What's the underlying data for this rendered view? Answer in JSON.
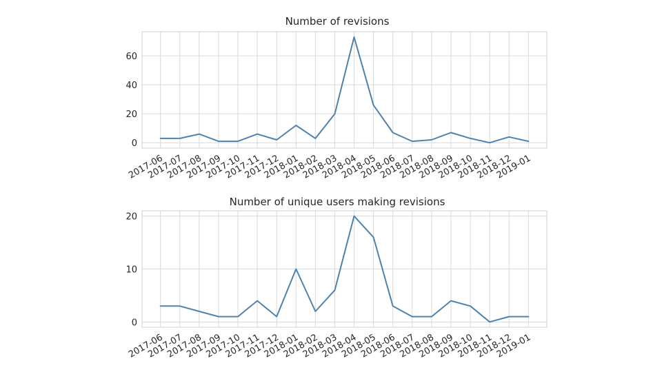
{
  "chart_data": [
    {
      "type": "line",
      "title": "Number of revisions",
      "xlabel": "",
      "ylabel": "",
      "x": [
        "2017-06",
        "2017-07",
        "2017-08",
        "2017-09",
        "2017-10",
        "2017-11",
        "2017-12",
        "2018-01",
        "2018-02",
        "2018-03",
        "2018-04",
        "2018-05",
        "2018-06",
        "2018-07",
        "2018-08",
        "2018-09",
        "2018-10",
        "2018-11",
        "2018-12",
        "2019-01"
      ],
      "series": [
        {
          "values": [
            3,
            3,
            6,
            1,
            1,
            6,
            2,
            12,
            3,
            20,
            73,
            26,
            7,
            1,
            2,
            7,
            3,
            0,
            4,
            1
          ]
        }
      ],
      "yticks": [
        0,
        20,
        40,
        60
      ],
      "ylim": [
        -3.7,
        76.7
      ],
      "xlim": [
        -0.95,
        19.95
      ],
      "grid": true,
      "line_color": "#4c82ad"
    },
    {
      "type": "line",
      "title": "Number of unique users making revisions",
      "xlabel": "",
      "ylabel": "",
      "x": [
        "2017-06",
        "2017-07",
        "2017-08",
        "2017-09",
        "2017-10",
        "2017-11",
        "2017-12",
        "2018-01",
        "2018-02",
        "2018-03",
        "2018-04",
        "2018-05",
        "2018-06",
        "2018-07",
        "2018-08",
        "2018-09",
        "2018-10",
        "2018-11",
        "2018-12",
        "2019-01"
      ],
      "series": [
        {
          "values": [
            3,
            3,
            2,
            1,
            1,
            4,
            1,
            10,
            2,
            6,
            20,
            16,
            3,
            1,
            1,
            4,
            3,
            0,
            1,
            1
          ]
        }
      ],
      "yticks": [
        0,
        10,
        20
      ],
      "ylim": [
        -1,
        21
      ],
      "xlim": [
        -0.95,
        19.95
      ],
      "grid": true,
      "line_color": "#4c82ad"
    }
  ]
}
